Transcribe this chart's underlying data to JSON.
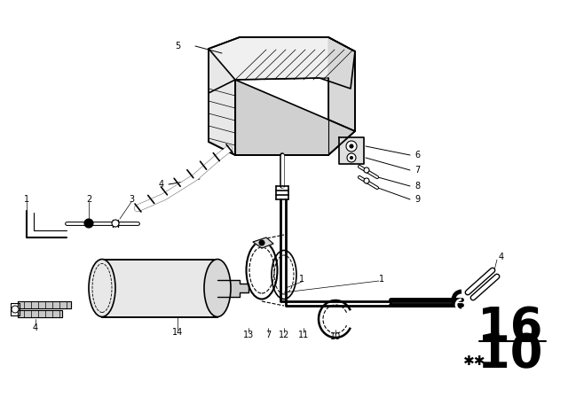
{
  "bg_color": "#ffffff",
  "fig_width": 6.4,
  "fig_height": 4.48,
  "dpi": 100,
  "page_num_top": "16",
  "page_num_bottom": "10",
  "stars_text": "* *",
  "line_color": "#000000"
}
